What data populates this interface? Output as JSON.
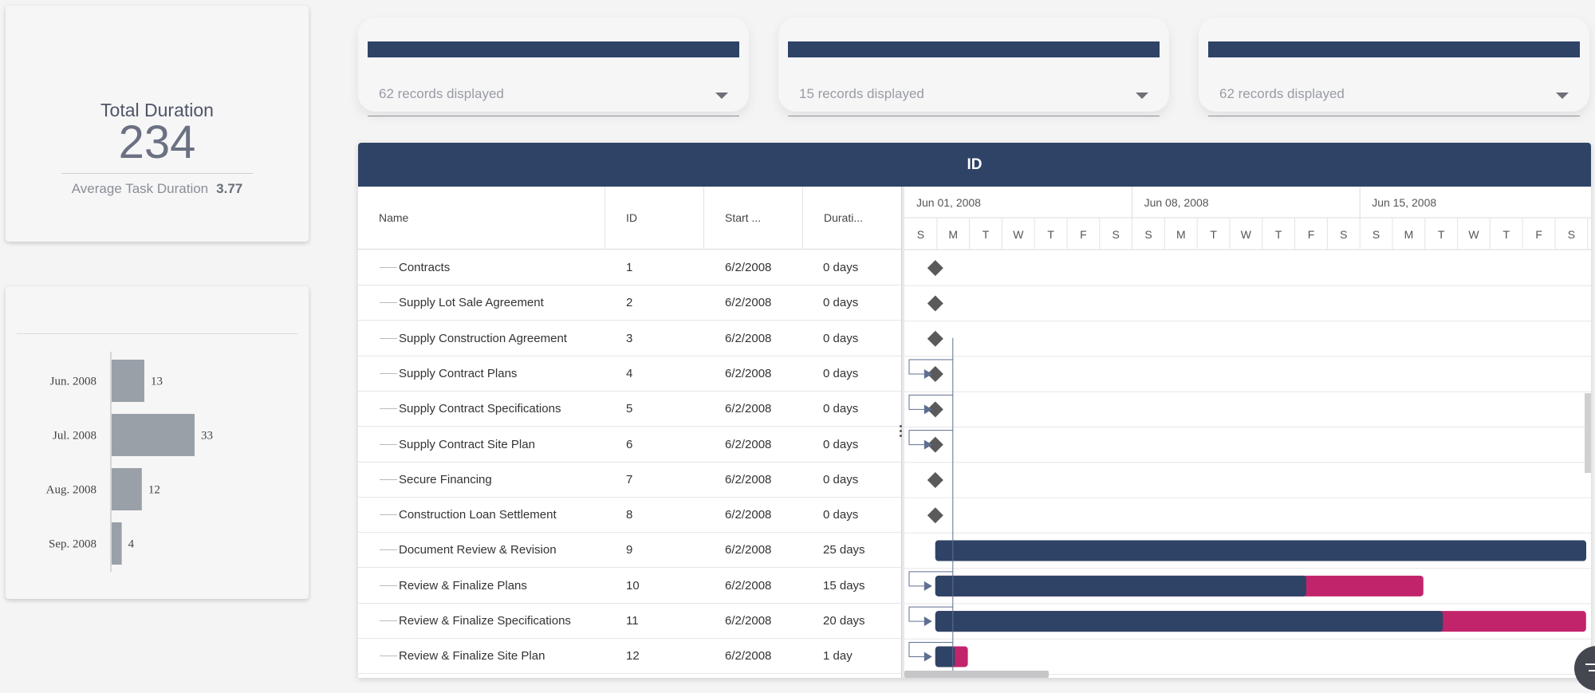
{
  "kpi": {
    "title": "Total Duration",
    "value": "234",
    "sub_label": "Average Task Duration",
    "sub_value": "3.77"
  },
  "bar_chart": {
    "chart_data": {
      "type": "bar",
      "orientation": "horizontal",
      "categories": [
        "Jun. 2008",
        "Jul. 2008",
        "Aug. 2008",
        "Sep. 2008"
      ],
      "values": [
        13,
        33,
        12,
        4
      ],
      "title": "",
      "xlabel": "",
      "ylabel": "",
      "xlim": [
        0,
        33
      ],
      "grid": false,
      "bar_color": "#9aa0a8"
    }
  },
  "filters": [
    {
      "label": "62 records displayed"
    },
    {
      "label": "15 records displayed"
    },
    {
      "label": "62 records displayed"
    }
  ],
  "gantt": {
    "header": "ID",
    "columns": {
      "name": "Name",
      "id": "ID",
      "start": "Start ...",
      "duration": "Durati..."
    },
    "weeks": [
      "Jun 01, 2008",
      "Jun 08, 2008",
      "Jun 15, 2008"
    ],
    "days": [
      "S",
      "M",
      "T",
      "W",
      "T",
      "F",
      "S",
      "S",
      "M",
      "T",
      "W",
      "T",
      "F",
      "S",
      "S",
      "M",
      "T",
      "W",
      "T",
      "F",
      "S"
    ],
    "rows": [
      {
        "name": "Contracts",
        "id": "1",
        "start": "6/2/2008",
        "duration": "0 days",
        "type": "milestone",
        "dep": false
      },
      {
        "name": "Supply Lot Sale Agreement",
        "id": "2",
        "start": "6/2/2008",
        "duration": "0 days",
        "type": "milestone",
        "dep": false
      },
      {
        "name": "Supply Construction Agreement",
        "id": "3",
        "start": "6/2/2008",
        "duration": "0 days",
        "type": "milestone",
        "dep": false
      },
      {
        "name": "Supply Contract Plans",
        "id": "4",
        "start": "6/2/2008",
        "duration": "0 days",
        "type": "milestone",
        "dep": true
      },
      {
        "name": "Supply Contract Specifications",
        "id": "5",
        "start": "6/2/2008",
        "duration": "0 days",
        "type": "milestone",
        "dep": true
      },
      {
        "name": "Supply Contract Site Plan",
        "id": "6",
        "start": "6/2/2008",
        "duration": "0 days",
        "type": "milestone",
        "dep": true
      },
      {
        "name": "Secure Financing",
        "id": "7",
        "start": "6/2/2008",
        "duration": "0 days",
        "type": "milestone",
        "dep": false
      },
      {
        "name": "Construction Loan Settlement",
        "id": "8",
        "start": "6/2/2008",
        "duration": "0 days",
        "type": "milestone",
        "dep": false
      },
      {
        "name": "Document Review & Revision",
        "id": "9",
        "start": "6/2/2008",
        "duration": "25 days",
        "type": "task",
        "days": 25,
        "progress_days": 25,
        "dep": false
      },
      {
        "name": "Review & Finalize Plans",
        "id": "10",
        "start": "6/2/2008",
        "duration": "15 days",
        "type": "task",
        "days": 15,
        "progress_days": 11.4,
        "dep": true
      },
      {
        "name": "Review & Finalize Specifications",
        "id": "11",
        "start": "6/2/2008",
        "duration": "20 days",
        "type": "task",
        "days": 20,
        "progress_days": 15.6,
        "dep": true
      },
      {
        "name": "Review & Finalize Site Plan",
        "id": "12",
        "start": "6/2/2008",
        "duration": "1 day",
        "type": "task",
        "days": 1,
        "progress_days": 0.6,
        "dep": true
      }
    ],
    "colors": {
      "bar": "#2e4366",
      "remaining": "#c2246c",
      "milestone": "#5a5a5a",
      "link": "#5f6f91"
    }
  }
}
